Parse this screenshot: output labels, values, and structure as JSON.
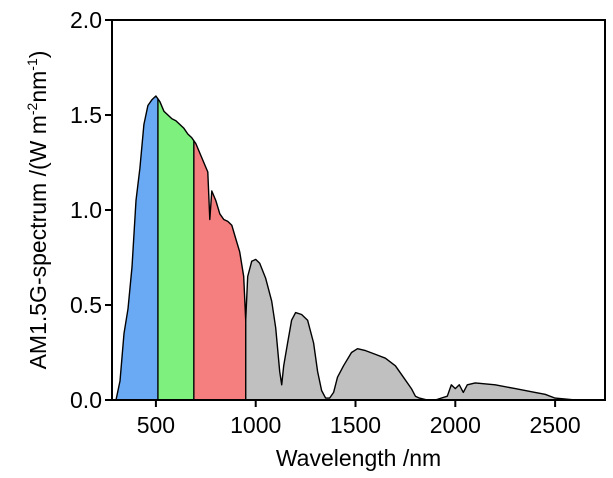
{
  "chart_data": {
    "type": "area",
    "title": "",
    "xlabel": "Wavelength /nm",
    "ylabel": {
      "prefix": "AM1.5G-spectrum /(W m",
      "sup1": "-2",
      "mid": "nm",
      "sup2": "-1",
      "suffix": ")"
    },
    "xlim": [
      280,
      2750
    ],
    "ylim": [
      0,
      2.0
    ],
    "xticks": [
      500,
      1000,
      1500,
      2000,
      2500
    ],
    "yticks": [
      0.0,
      0.5,
      1.0,
      1.5,
      2.0
    ],
    "xtick_labels": [
      "500",
      "1000",
      "1500",
      "2000",
      "2500"
    ],
    "ytick_labels": [
      "0.0",
      "0.5",
      "1.0",
      "1.5",
      "2.0"
    ],
    "grid": false,
    "bands": [
      {
        "color": "#6aaaf5",
        "range": [
          280,
          510
        ]
      },
      {
        "color": "#7df07d",
        "range": [
          510,
          690
        ]
      },
      {
        "color": "#f57e7e",
        "range": [
          690,
          950
        ]
      },
      {
        "color": "#c0c0c0",
        "range": [
          950,
          2600
        ]
      }
    ],
    "series": [
      {
        "x": [
          300,
          320,
          340,
          360,
          380,
          400,
          420,
          440,
          460,
          480,
          500,
          520,
          540,
          560,
          580,
          600,
          620,
          640,
          660,
          680,
          700,
          720,
          740,
          760,
          770,
          780,
          800,
          820,
          840,
          860,
          880,
          900,
          920,
          940,
          950,
          960,
          980,
          1000,
          1020,
          1050,
          1080,
          1100,
          1120,
          1130,
          1140,
          1160,
          1180,
          1200,
          1230,
          1260,
          1290,
          1310,
          1330,
          1350,
          1370,
          1390,
          1410,
          1440,
          1480,
          1510,
          1550,
          1600,
          1650,
          1700,
          1740,
          1780,
          1800,
          1820,
          1860,
          1900,
          1960,
          1980,
          2000,
          2020,
          2040,
          2060,
          2100,
          2200,
          2300,
          2400,
          2450,
          2500,
          2600
        ],
        "y": [
          0.0,
          0.1,
          0.35,
          0.48,
          0.7,
          1.05,
          1.22,
          1.45,
          1.55,
          1.58,
          1.6,
          1.57,
          1.52,
          1.5,
          1.48,
          1.47,
          1.45,
          1.43,
          1.4,
          1.38,
          1.35,
          1.3,
          1.25,
          1.2,
          0.95,
          1.1,
          1.05,
          0.98,
          0.95,
          0.94,
          0.92,
          0.85,
          0.78,
          0.65,
          0.42,
          0.65,
          0.73,
          0.74,
          0.72,
          0.64,
          0.52,
          0.38,
          0.15,
          0.08,
          0.18,
          0.3,
          0.42,
          0.46,
          0.45,
          0.42,
          0.3,
          0.15,
          0.05,
          0.01,
          0.01,
          0.04,
          0.12,
          0.18,
          0.25,
          0.27,
          0.26,
          0.24,
          0.22,
          0.18,
          0.12,
          0.06,
          0.02,
          0.01,
          0.0,
          0.0,
          0.02,
          0.08,
          0.06,
          0.08,
          0.04,
          0.08,
          0.09,
          0.08,
          0.06,
          0.04,
          0.03,
          0.01,
          0.0
        ]
      }
    ]
  }
}
